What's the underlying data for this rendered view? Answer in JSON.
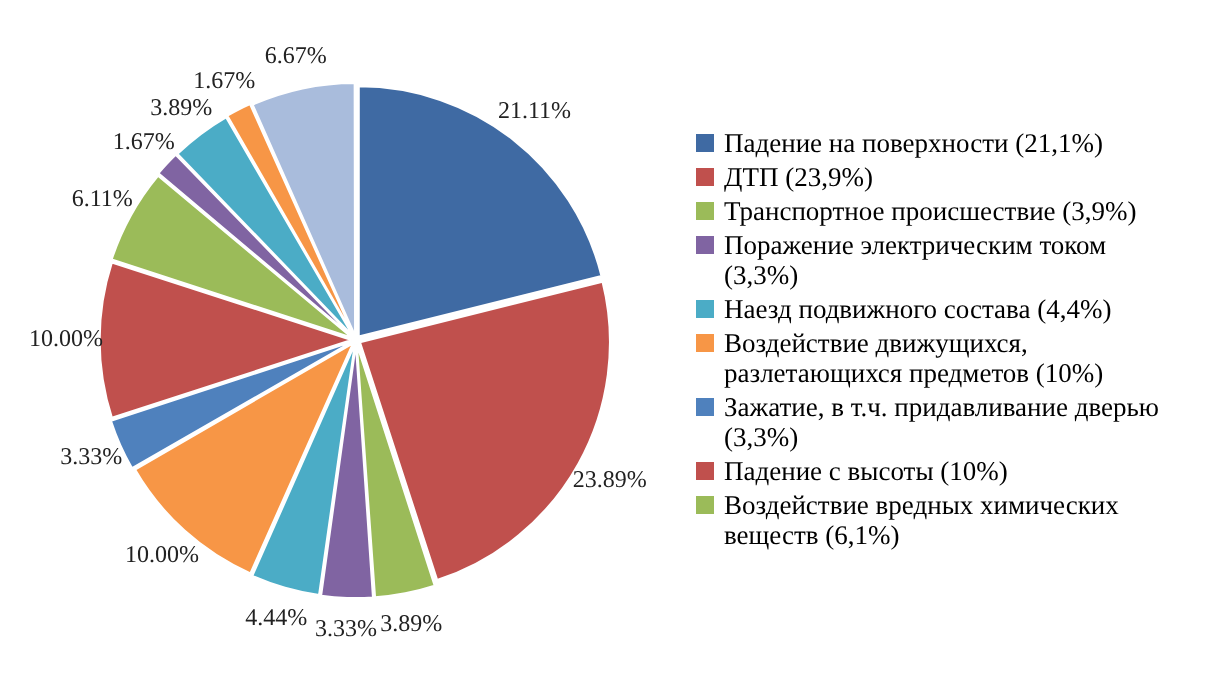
{
  "chart_data": {
    "type": "pie",
    "categories": [
      "Падение на поверхности (21,1%)",
      "ДТП (23,9%)",
      "Транспортное происшествие (3,9%)",
      "Поражение электрическим током (3,3%)",
      "Наезд подвижного состава (4,4%)",
      "Воздействие движущихся, разлетающихся предметов (10%)",
      "Зажатие, в т.ч. придавливание дверью (3,3%)",
      "Падение с высоты (10%)",
      "Воздействие вредных химических веществ (6,1%)",
      null,
      null,
      null,
      null
    ],
    "values": [
      21.11,
      23.89,
      3.89,
      3.33,
      4.44,
      10.0,
      3.33,
      10.0,
      6.11,
      1.67,
      3.89,
      1.67,
      6.67
    ],
    "value_labels": [
      "21.11%",
      "23.89%",
      "3.89%",
      "3.33%",
      "4.44%",
      "10.00%",
      "3.33%",
      "10.00%",
      "6.11%",
      "1.67%",
      "3.89%",
      "1.67%",
      "6.67%"
    ],
    "colors": [
      "#3f6aa3",
      "#c0504d",
      "#9bbb59",
      "#8064a2",
      "#4bacc6",
      "#f79646",
      "#4f81bd",
      "#c0504d",
      "#9bbb59",
      "#8064a2",
      "#4bacc6",
      "#f79646",
      "#a9bcdc"
    ],
    "legend": "right"
  }
}
